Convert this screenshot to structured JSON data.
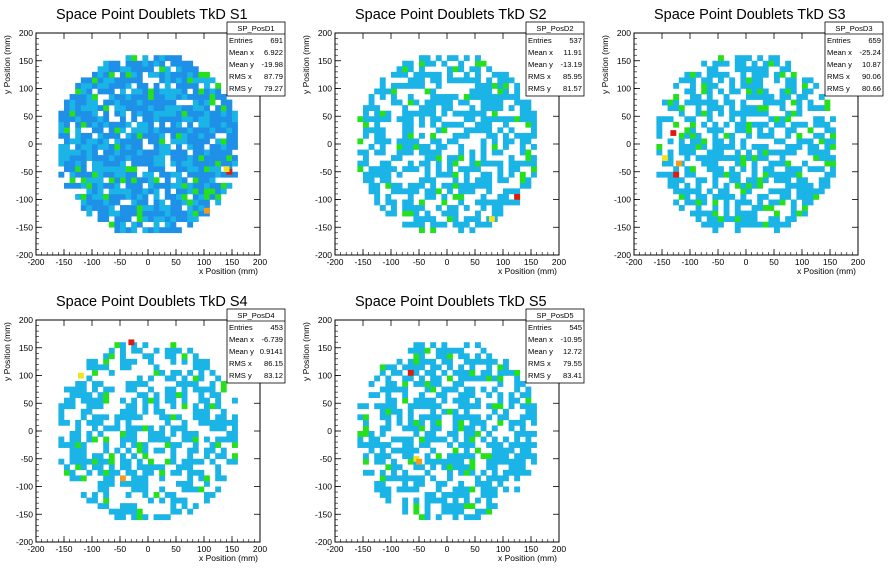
{
  "colors": {
    "blue": "#1e90e8",
    "cyan": "#1ab4e6",
    "green": "#26e01c",
    "yellow": "#f2e31c",
    "orange": "#f59a1c",
    "red": "#e01a10"
  },
  "chart_data": [
    {
      "type": "heatmap",
      "title": "Space Point Doublets TkD S1",
      "xlabel": "x Position (mm)",
      "ylabel": "y Position (mm)",
      "xlim": [
        -200,
        200
      ],
      "ylim": [
        -200,
        200
      ],
      "xticks": [
        "-200",
        "-150",
        "-100",
        "-50",
        "0",
        "50",
        "100",
        "150",
        "200"
      ],
      "yticks": [
        "-200",
        "-150",
        "-100",
        "-50",
        "0",
        "50",
        "100",
        "150",
        "200"
      ],
      "stats_box": {
        "name": "SP_PosD1",
        "entries": "Entries",
        "entries_value": "691",
        "rows": [
          [
            "Mean x",
            "6.922"
          ],
          [
            "Mean y",
            "-19.98"
          ],
          [
            "RMS x",
            "87.79"
          ],
          [
            "RMS y",
            "79.27"
          ]
        ]
      },
      "radius": 165,
      "fill": 0.84,
      "dominant_color": "#1e90e8",
      "hot_spots": [
        [
          140,
          -55
        ],
        [
          135,
          -50
        ],
        [
          100,
          -125
        ]
      ]
    },
    {
      "type": "heatmap",
      "title": "Space Point Doublets TkD S2",
      "xlabel": "x Position (mm)",
      "ylabel": "y Position (mm)",
      "xlim": [
        -200,
        200
      ],
      "ylim": [
        -200,
        200
      ],
      "xticks": [
        "-200",
        "-150",
        "-100",
        "-50",
        "0",
        "50",
        "100",
        "150",
        "200"
      ],
      "yticks": [
        "-200",
        "-150",
        "-100",
        "-50",
        "0",
        "50",
        "100",
        "150",
        "200"
      ],
      "stats_box": {
        "name": "SP_PosD2",
        "entries": "Entries",
        "entries_value": "537",
        "rows": [
          [
            "Mean x",
            "11.91"
          ],
          [
            "Mean y",
            "-13.19"
          ],
          [
            "RMS x",
            "85.95"
          ],
          [
            "RMS y",
            "81.57"
          ]
        ]
      },
      "radius": 165,
      "fill": 0.58,
      "dominant_color": "#1ab4e6",
      "hot_spots": [
        [
          120,
          -100
        ],
        [
          75,
          -140
        ]
      ]
    },
    {
      "type": "heatmap",
      "title": "Space Point Doublets TkD S3",
      "xlabel": "x Position (mm)",
      "ylabel": "y Position (mm)",
      "xlim": [
        -200,
        200
      ],
      "ylim": [
        -200,
        200
      ],
      "xticks": [
        "-200",
        "-150",
        "-100",
        "-50",
        "0",
        "50",
        "100",
        "150",
        "200"
      ],
      "yticks": [
        "-200",
        "-150",
        "-100",
        "-50",
        "0",
        "50",
        "100",
        "150",
        "200"
      ],
      "stats_box": {
        "name": "SP_PosD3",
        "entries": "Entries",
        "entries_value": "659",
        "rows": [
          [
            "Mean x",
            "-25.24"
          ],
          [
            "Mean y",
            "10.87"
          ],
          [
            "RMS x",
            "90.06"
          ],
          [
            "RMS y",
            "80.66"
          ]
        ]
      },
      "radius": 165,
      "fill": 0.6,
      "dominant_color": "#1ab4e6",
      "hot_spots": [
        [
          -135,
          15
        ],
        [
          -150,
          -30
        ],
        [
          -125,
          -40
        ],
        [
          -130,
          -60
        ]
      ]
    },
    {
      "type": "heatmap",
      "title": "Space Point Doublets TkD S4",
      "xlabel": "x Position (mm)",
      "ylabel": "y Position (mm)",
      "xlim": [
        -200,
        200
      ],
      "ylim": [
        -200,
        200
      ],
      "xticks": [
        "-200",
        "-150",
        "-100",
        "-50",
        "0",
        "50",
        "100",
        "150",
        "200"
      ],
      "yticks": [
        "-200",
        "-150",
        "-100",
        "-50",
        "0",
        "50",
        "100",
        "150",
        "200"
      ],
      "stats_box": {
        "name": "SP_PosD4",
        "entries": "Entries",
        "entries_value": "453",
        "rows": [
          [
            "Mean x",
            "-6.739"
          ],
          [
            "Mean y",
            "0.9141"
          ],
          [
            "RMS x",
            "86.15"
          ],
          [
            "RMS y",
            "83.12"
          ]
        ]
      },
      "radius": 165,
      "fill": 0.5,
      "dominant_color": "#1ab4e6",
      "hot_spots": [
        [
          -35,
          155
        ],
        [
          -125,
          95
        ],
        [
          -50,
          -90
        ]
      ]
    },
    {
      "type": "heatmap",
      "title": "Space Point Doublets TkD S5",
      "xlabel": "x Position (mm)",
      "ylabel": "y Position (mm)",
      "xlim": [
        -200,
        200
      ],
      "ylim": [
        -200,
        200
      ],
      "xticks": [
        "-200",
        "-150",
        "-100",
        "-50",
        "0",
        "50",
        "100",
        "150",
        "200"
      ],
      "yticks": [
        "-200",
        "-150",
        "-100",
        "-50",
        "0",
        "50",
        "100",
        "150",
        "200"
      ],
      "stats_box": {
        "name": "SP_PosD5",
        "entries": "Entries",
        "entries_value": "545",
        "rows": [
          [
            "Mean x",
            "-10.95"
          ],
          [
            "Mean y",
            "12.72"
          ],
          [
            "RMS x",
            "79.55"
          ],
          [
            "RMS y",
            "83.41"
          ]
        ]
      },
      "radius": 165,
      "fill": 0.58,
      "dominant_color": "#1ab4e6",
      "hot_spots": [
        [
          -70,
          100
        ],
        [
          -60,
          -55
        ],
        [
          -55,
          -60
        ]
      ]
    }
  ]
}
